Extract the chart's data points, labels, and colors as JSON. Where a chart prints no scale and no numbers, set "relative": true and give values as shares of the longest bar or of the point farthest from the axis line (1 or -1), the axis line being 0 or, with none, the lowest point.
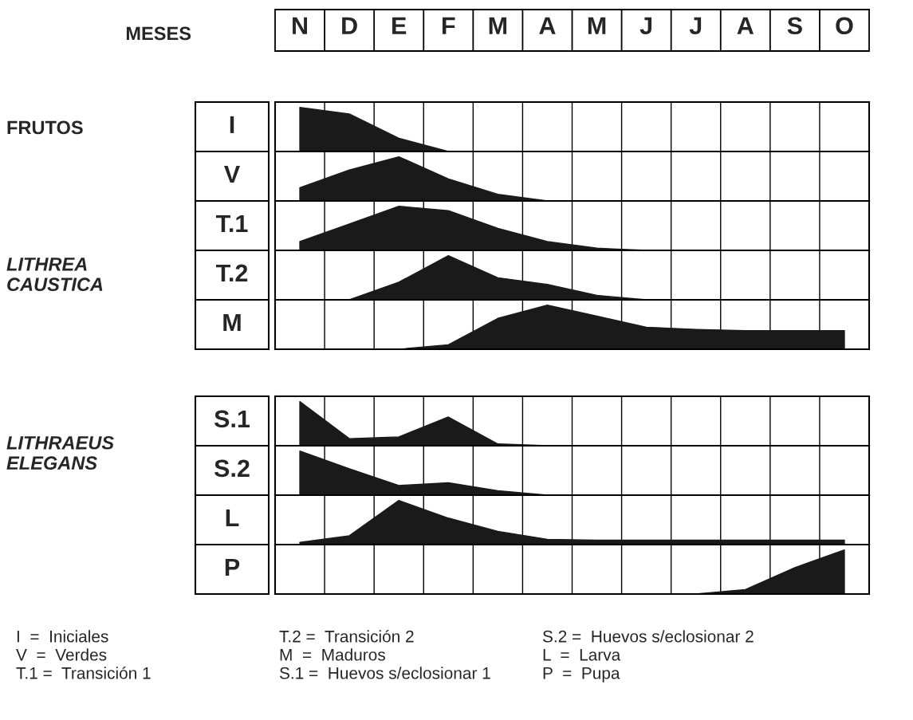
{
  "chart_data": [
    {
      "type": "area",
      "relative": true,
      "ylabel": "I",
      "categories": [
        "N",
        "D",
        "E",
        "F",
        "M",
        "A",
        "M",
        "J",
        "J",
        "A",
        "S",
        "O"
      ],
      "grid": "x",
      "annotations": [
        "MESES",
        "FRUTOS",
        "LITHREA\nCAUSTICA"
      ],
      "series": [
        {
          "color": "#1a1a1a",
          "values": [
            1,
            0.85,
            0.3,
            0,
            0,
            0,
            0,
            0,
            0,
            0,
            0,
            0
          ]
        }
      ]
    },
    {
      "type": "area",
      "relative": true,
      "ylabel": "V",
      "categories": [
        null,
        null,
        null,
        null,
        null,
        null,
        null,
        null,
        null,
        null,
        null,
        null
      ],
      "grid": "x",
      "series": [
        {
          "color": "#1a1a1a",
          "values": [
            0.3,
            0.7,
            1,
            0.5,
            0.15,
            0,
            0,
            0,
            0,
            0,
            0,
            0
          ]
        }
      ]
    },
    {
      "type": "area",
      "relative": true,
      "ylabel": "T.1",
      "categories": [
        null,
        null,
        null,
        null,
        null,
        null,
        null,
        null,
        null,
        null,
        null,
        null
      ],
      "grid": "x",
      "series": [
        {
          "color": "#1a1a1a",
          "values": [
            0.2,
            0.6,
            1,
            0.9,
            0.5,
            0.2,
            0.05,
            0,
            0,
            0,
            0,
            0
          ]
        }
      ]
    },
    {
      "type": "area",
      "relative": true,
      "ylabel": "T.2",
      "categories": [
        null,
        null,
        null,
        null,
        null,
        null,
        null,
        null,
        null,
        null,
        null,
        null
      ],
      "grid": "x",
      "series": [
        {
          "color": "#1a1a1a",
          "values": [
            0,
            0,
            0.4,
            1,
            0.5,
            0.35,
            0.1,
            0,
            0,
            0,
            0,
            0
          ]
        }
      ]
    },
    {
      "type": "area",
      "relative": true,
      "ylabel": "M",
      "categories": [
        null,
        null,
        null,
        null,
        null,
        null,
        null,
        null,
        null,
        null,
        null,
        null
      ],
      "grid": "x",
      "series": [
        {
          "color": "#1a1a1a",
          "values": [
            0,
            0,
            0,
            0.1,
            0.7,
            1,
            0.75,
            0.5,
            0.45,
            0.42,
            0.42,
            0.42
          ]
        }
      ]
    },
    {
      "type": "area",
      "relative": true,
      "ylabel": "S.1",
      "categories": [
        null,
        null,
        null,
        null,
        null,
        null,
        null,
        null,
        null,
        null,
        null,
        null
      ],
      "grid": "x",
      "annotations": [
        "LITHRAEUS\nELEGANS"
      ],
      "series": [
        {
          "color": "#1a1a1a",
          "values": [
            1,
            0.16,
            0.2,
            0.65,
            0.04,
            0,
            0,
            0,
            0,
            0,
            0,
            0
          ]
        }
      ]
    },
    {
      "type": "area",
      "relative": true,
      "ylabel": "S.2",
      "categories": [
        null,
        null,
        null,
        null,
        null,
        null,
        null,
        null,
        null,
        null,
        null,
        null
      ],
      "grid": "x",
      "series": [
        {
          "color": "#1a1a1a",
          "values": [
            1,
            0.6,
            0.22,
            0.28,
            0.1,
            0,
            0,
            0,
            0,
            0,
            0,
            0
          ]
        }
      ]
    },
    {
      "type": "area",
      "relative": true,
      "ylabel": "L",
      "categories": [
        null,
        null,
        null,
        null,
        null,
        null,
        null,
        null,
        null,
        null,
        null,
        null
      ],
      "grid": "x",
      "series": [
        {
          "color": "#1a1a1a",
          "values": [
            0.05,
            0.2,
            1,
            0.6,
            0.3,
            0.12,
            0.1,
            0.1,
            0.1,
            0.1,
            0.1,
            0.1
          ]
        }
      ]
    },
    {
      "type": "area",
      "relative": true,
      "ylabel": "P",
      "categories": [
        null,
        null,
        null,
        null,
        null,
        null,
        null,
        null,
        null,
        null,
        null,
        null
      ],
      "grid": "x",
      "annotations": [
        "I  =  Iniciales",
        "V  =  Verdes",
        "T.1 =  Transición 1",
        "T.2 =  Transición 2",
        "M  =  Maduros",
        "S.1 =  Huevos s/eclosionar 1",
        "S.2 =  Huevos s/eclosionar 2",
        "L  =  Larva",
        "P  =  Pupa"
      ],
      "series": [
        {
          "color": "#1a1a1a",
          "values": [
            0,
            0,
            0,
            0,
            0,
            0,
            0,
            0,
            0,
            0.1,
            0.6,
            1
          ]
        }
      ]
    }
  ]
}
